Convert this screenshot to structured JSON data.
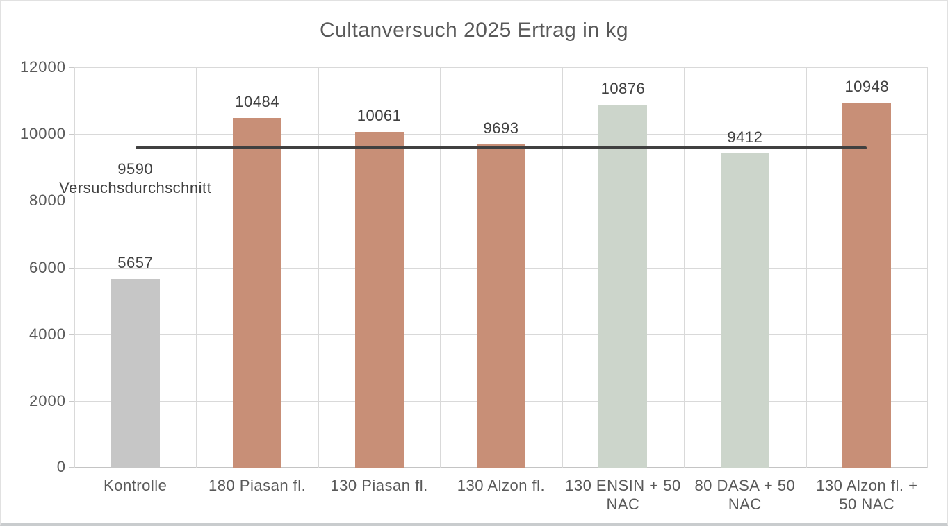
{
  "chart_data": {
    "type": "bar",
    "title": "Cultanversuch 2025 Ertrag in kg",
    "categories": [
      "Kontrolle",
      "180 Piasan fl.",
      "130 Piasan fl.",
      "130 Alzon fl.",
      "130 ENSIN + 50\nNAC",
      "80 DASA + 50\nNAC",
      "130 Alzon fl. +\n50 NAC"
    ],
    "values": [
      5657,
      10484,
      10061,
      9693,
      10876,
      9412,
      10948
    ],
    "bar_colors": [
      "#C6C6C6",
      "#C88F77",
      "#C88F77",
      "#C88F77",
      "#CCD5CB",
      "#CCD5CB",
      "#C88F77"
    ],
    "average_line": {
      "value": 9590,
      "value_label": "9590",
      "text_label": "Versuchsdurchschnitt",
      "color": "#404040"
    },
    "ylim": [
      0,
      12000
    ],
    "yticks": [
      0,
      2000,
      4000,
      6000,
      8000,
      10000,
      12000
    ],
    "ytick_labels": [
      "0",
      "2000",
      "4000",
      "6000",
      "8000",
      "10000",
      "12000"
    ],
    "grid": true,
    "legend": "none",
    "gridline_color": "#D9D9D9",
    "axis_text_color": "#595959",
    "data_label_color": "#404040"
  }
}
